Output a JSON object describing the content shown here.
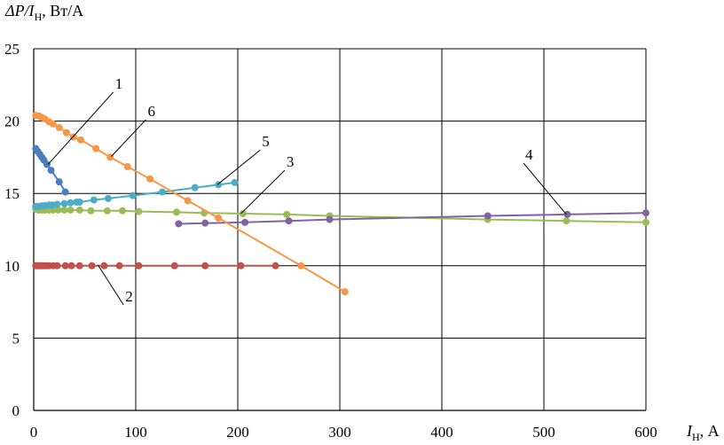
{
  "chart_data": {
    "type": "scatter",
    "y_axis_title": {
      "main": "ΔP/I",
      "sub": "Н",
      "unit": ", Вт/А"
    },
    "x_axis_title": {
      "main": "I",
      "sub": "Н",
      "unit": ", А"
    },
    "xlim": [
      0,
      600
    ],
    "ylim": [
      0,
      25
    ],
    "x_ticks": [
      "0",
      "100",
      "200",
      "300",
      "400",
      "500",
      "600"
    ],
    "y_ticks": [
      "0",
      "5",
      "10",
      "15",
      "20",
      "25"
    ],
    "grid": true,
    "legend": "none",
    "series": [
      {
        "id": "1",
        "color": "#4a7ebf",
        "points": [
          [
            2,
            18.1
          ],
          [
            4,
            17.9
          ],
          [
            6,
            17.7
          ],
          [
            8,
            17.5
          ],
          [
            10,
            17.3
          ],
          [
            13,
            17.0
          ],
          [
            17,
            16.6
          ],
          [
            25,
            15.8
          ],
          [
            31,
            15.1
          ]
        ]
      },
      {
        "id": "2",
        "color": "#c0504d",
        "points": [
          [
            2,
            10.0
          ],
          [
            4,
            10.0
          ],
          [
            6,
            10.0
          ],
          [
            8,
            10.0
          ],
          [
            10,
            10.0
          ],
          [
            12,
            10.0
          ],
          [
            15,
            10.0
          ],
          [
            19,
            10.0
          ],
          [
            23,
            10.0
          ],
          [
            31,
            10.0
          ],
          [
            37,
            10.0
          ],
          [
            45,
            10.0
          ],
          [
            57,
            10.0
          ],
          [
            69,
            10.0
          ],
          [
            84,
            10.0
          ],
          [
            103,
            10.0
          ],
          [
            138,
            10.0
          ],
          [
            168,
            10.0
          ],
          [
            203,
            10.0
          ],
          [
            237,
            10.0
          ]
        ]
      },
      {
        "id": "3",
        "color": "#9bbb59",
        "points": [
          [
            2,
            13.9
          ],
          [
            5,
            13.85
          ],
          [
            8,
            13.85
          ],
          [
            11,
            13.85
          ],
          [
            15,
            13.85
          ],
          [
            19,
            13.85
          ],
          [
            24,
            13.85
          ],
          [
            30,
            13.85
          ],
          [
            36,
            13.85
          ],
          [
            45,
            13.85
          ],
          [
            56,
            13.8
          ],
          [
            72,
            13.8
          ],
          [
            87,
            13.8
          ],
          [
            103,
            13.75
          ],
          [
            140,
            13.7
          ],
          [
            167,
            13.65
          ],
          [
            205,
            13.6
          ],
          [
            248,
            13.55
          ],
          [
            290,
            13.45
          ],
          [
            445,
            13.2
          ],
          [
            522,
            13.1
          ],
          [
            600,
            13.0
          ]
        ]
      },
      {
        "id": "4",
        "color": "#8064a2",
        "points": [
          [
            142,
            12.9
          ],
          [
            168,
            12.95
          ],
          [
            207,
            13.0
          ],
          [
            250,
            13.1
          ],
          [
            290,
            13.2
          ],
          [
            445,
            13.45
          ],
          [
            523,
            13.55
          ],
          [
            600,
            13.65
          ]
        ]
      },
      {
        "id": "5",
        "color": "#4bacc6",
        "points": [
          [
            2,
            14.1
          ],
          [
            5,
            14.1
          ],
          [
            8,
            14.15
          ],
          [
            11,
            14.15
          ],
          [
            15,
            14.2
          ],
          [
            18,
            14.2
          ],
          [
            23,
            14.25
          ],
          [
            30,
            14.3
          ],
          [
            36,
            14.35
          ],
          [
            42,
            14.4
          ],
          [
            45,
            14.4
          ],
          [
            59,
            14.55
          ],
          [
            73,
            14.65
          ],
          [
            97,
            14.85
          ],
          [
            126,
            15.1
          ],
          [
            158,
            15.4
          ],
          [
            181,
            15.6
          ],
          [
            197,
            15.75
          ]
        ]
      },
      {
        "id": "6",
        "color": "#f79646",
        "points": [
          [
            2,
            20.4
          ],
          [
            5,
            20.35
          ],
          [
            8,
            20.25
          ],
          [
            11,
            20.15
          ],
          [
            15,
            19.95
          ],
          [
            19,
            19.8
          ],
          [
            25,
            19.55
          ],
          [
            32,
            19.2
          ],
          [
            39,
            18.9
          ],
          [
            46,
            18.7
          ],
          [
            61,
            18.1
          ],
          [
            75,
            17.5
          ],
          [
            92,
            16.85
          ],
          [
            114,
            16.0
          ],
          [
            151,
            14.5
          ],
          [
            181,
            13.3
          ],
          [
            262,
            10.0
          ],
          [
            305,
            8.2
          ]
        ]
      }
    ],
    "annotations": [
      {
        "label": "1",
        "point": [
          14,
          17.0
        ],
        "label_at": [
          78,
          22.0
        ]
      },
      {
        "label": "2",
        "point": [
          63,
          10.05
        ],
        "label_at": [
          88,
          7.3
        ]
      },
      {
        "label": "3",
        "point": [
          203,
          13.6
        ],
        "label_at": [
          246,
          16.6
        ]
      },
      {
        "label": "4",
        "point": [
          522,
          13.55
        ],
        "label_at": [
          480,
          17.1
        ]
      },
      {
        "label": "5",
        "point": [
          180,
          15.6
        ],
        "label_at": [
          222,
          18.0
        ]
      },
      {
        "label": "6",
        "point": [
          76,
          17.55
        ],
        "label_at": [
          110,
          20.1
        ]
      }
    ]
  }
}
